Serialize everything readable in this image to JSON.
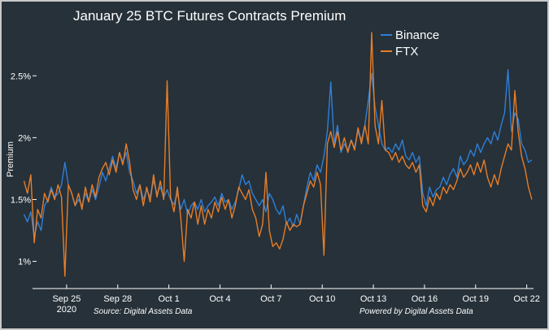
{
  "chart_data": {
    "type": "line",
    "title": "January 25 BTC Futures Contracts Premium",
    "ylabel": "Premium",
    "xlabel": "",
    "x_unit": "date (2020)",
    "xlim": [
      0,
      29.4
    ],
    "ylim": [
      0.8,
      2.85
    ],
    "x_ticks": [
      {
        "x": 2.0,
        "label": "Sep 25",
        "sublabel": "2020"
      },
      {
        "x": 5.0,
        "label": "Sep 28"
      },
      {
        "x": 8.0,
        "label": "Oct 1"
      },
      {
        "x": 11.0,
        "label": "Oct 4"
      },
      {
        "x": 14.0,
        "label": "Oct 7"
      },
      {
        "x": 17.0,
        "label": "Oct 10"
      },
      {
        "x": 20.0,
        "label": "Oct 13"
      },
      {
        "x": 23.0,
        "label": "Oct 16"
      },
      {
        "x": 26.0,
        "label": "Oct 19"
      },
      {
        "x": 29.0,
        "label": "Oct 22"
      }
    ],
    "y_ticks": [
      {
        "y": 1.0,
        "label": "1%"
      },
      {
        "y": 1.5,
        "label": "1.5%"
      },
      {
        "y": 2.0,
        "label": "2%"
      },
      {
        "y": 2.5,
        "label": "2.5%"
      }
    ],
    "legend_position": "top-right",
    "grid": false,
    "series": [
      {
        "name": "Binance",
        "color": "#2e7fd9",
        "points": [
          [
            -0.5,
            1.38
          ],
          [
            -0.3,
            1.32
          ],
          [
            -0.1,
            1.4
          ],
          [
            0.1,
            1.2
          ],
          [
            0.3,
            1.32
          ],
          [
            0.5,
            1.25
          ],
          [
            0.7,
            1.45
          ],
          [
            0.9,
            1.5
          ],
          [
            1.1,
            1.6
          ],
          [
            1.3,
            1.52
          ],
          [
            1.5,
            1.55
          ],
          [
            1.7,
            1.62
          ],
          [
            1.9,
            1.8
          ],
          [
            2.1,
            1.62
          ],
          [
            2.3,
            1.55
          ],
          [
            2.5,
            1.45
          ],
          [
            2.7,
            1.5
          ],
          [
            2.9,
            1.45
          ],
          [
            3.1,
            1.55
          ],
          [
            3.3,
            1.48
          ],
          [
            3.5,
            1.58
          ],
          [
            3.7,
            1.5
          ],
          [
            3.9,
            1.6
          ],
          [
            4.1,
            1.72
          ],
          [
            4.3,
            1.65
          ],
          [
            4.5,
            1.75
          ],
          [
            4.7,
            1.85
          ],
          [
            4.9,
            1.75
          ],
          [
            5.1,
            1.88
          ],
          [
            5.3,
            1.8
          ],
          [
            5.5,
            1.88
          ],
          [
            5.7,
            1.72
          ],
          [
            5.9,
            1.65
          ],
          [
            6.1,
            1.55
          ],
          [
            6.3,
            1.62
          ],
          [
            6.5,
            1.5
          ],
          [
            6.7,
            1.58
          ],
          [
            6.9,
            1.52
          ],
          [
            7.1,
            1.65
          ],
          [
            7.3,
            1.55
          ],
          [
            7.5,
            1.6
          ],
          [
            7.7,
            1.52
          ],
          [
            7.9,
            1.58
          ],
          [
            8.1,
            1.5
          ],
          [
            8.3,
            1.46
          ],
          [
            8.5,
            1.55
          ],
          [
            8.7,
            1.42
          ],
          [
            8.9,
            1.5
          ],
          [
            9.1,
            1.38
          ],
          [
            9.3,
            1.45
          ],
          [
            9.5,
            1.48
          ],
          [
            9.7,
            1.42
          ],
          [
            9.9,
            1.5
          ],
          [
            10.1,
            1.4
          ],
          [
            10.3,
            1.45
          ],
          [
            10.5,
            1.48
          ],
          [
            10.7,
            1.52
          ],
          [
            10.9,
            1.45
          ],
          [
            11.1,
            1.55
          ],
          [
            11.3,
            1.48
          ],
          [
            11.5,
            1.5
          ],
          [
            11.7,
            1.42
          ],
          [
            11.9,
            1.48
          ],
          [
            12.1,
            1.58
          ],
          [
            12.3,
            1.7
          ],
          [
            12.5,
            1.62
          ],
          [
            12.7,
            1.65
          ],
          [
            12.9,
            1.55
          ],
          [
            13.1,
            1.5
          ],
          [
            13.3,
            1.45
          ],
          [
            13.5,
            1.5
          ],
          [
            13.7,
            1.4
          ],
          [
            13.9,
            1.55
          ],
          [
            14.1,
            1.5
          ],
          [
            14.3,
            1.42
          ],
          [
            14.5,
            1.38
          ],
          [
            14.7,
            1.45
          ],
          [
            14.9,
            1.3
          ],
          [
            15.1,
            1.35
          ],
          [
            15.3,
            1.28
          ],
          [
            15.5,
            1.38
          ],
          [
            15.7,
            1.3
          ],
          [
            15.9,
            1.45
          ],
          [
            16.1,
            1.6
          ],
          [
            16.3,
            1.72
          ],
          [
            16.5,
            1.65
          ],
          [
            16.7,
            1.78
          ],
          [
            16.9,
            1.72
          ],
          [
            17.1,
            1.85
          ],
          [
            17.3,
            2.05
          ],
          [
            17.5,
            2.45
          ],
          [
            17.7,
            1.95
          ],
          [
            17.9,
            2.1
          ],
          [
            18.1,
            1.88
          ],
          [
            18.3,
            1.95
          ],
          [
            18.5,
            1.9
          ],
          [
            18.7,
            1.98
          ],
          [
            18.9,
            1.92
          ],
          [
            19.1,
            2.05
          ],
          [
            19.3,
            1.98
          ],
          [
            19.5,
            2.1
          ],
          [
            19.7,
            2.3
          ],
          [
            19.9,
            2.52
          ],
          [
            20.1,
            2.25
          ],
          [
            20.3,
            2.1
          ],
          [
            20.5,
            1.95
          ],
          [
            20.7,
            1.9
          ],
          [
            20.9,
            1.92
          ],
          [
            21.1,
            1.88
          ],
          [
            21.3,
            1.95
          ],
          [
            21.5,
            1.9
          ],
          [
            21.7,
            1.98
          ],
          [
            21.9,
            1.85
          ],
          [
            22.1,
            1.82
          ],
          [
            22.3,
            1.88
          ],
          [
            22.5,
            1.8
          ],
          [
            22.7,
            1.85
          ],
          [
            22.9,
            1.55
          ],
          [
            23.1,
            1.45
          ],
          [
            23.3,
            1.6
          ],
          [
            23.5,
            1.52
          ],
          [
            23.7,
            1.58
          ],
          [
            23.9,
            1.6
          ],
          [
            24.1,
            1.68
          ],
          [
            24.3,
            1.62
          ],
          [
            24.5,
            1.7
          ],
          [
            24.7,
            1.75
          ],
          [
            24.9,
            1.68
          ],
          [
            25.1,
            1.85
          ],
          [
            25.3,
            1.78
          ],
          [
            25.5,
            1.82
          ],
          [
            25.7,
            1.9
          ],
          [
            25.9,
            1.85
          ],
          [
            26.1,
            1.95
          ],
          [
            26.3,
            1.88
          ],
          [
            26.5,
            1.95
          ],
          [
            26.7,
            2.0
          ],
          [
            26.9,
            1.95
          ],
          [
            27.1,
            2.05
          ],
          [
            27.3,
            1.98
          ],
          [
            27.5,
            2.1
          ],
          [
            27.7,
            2.2
          ],
          [
            27.9,
            2.55
          ],
          [
            28.1,
            2.05
          ],
          [
            28.3,
            2.2
          ],
          [
            28.5,
            2.15
          ],
          [
            28.7,
            1.95
          ],
          [
            28.9,
            1.9
          ],
          [
            29.1,
            1.8
          ],
          [
            29.3,
            1.82
          ]
        ]
      },
      {
        "name": "FTX",
        "color": "#e87d27",
        "points": [
          [
            -0.5,
            1.65
          ],
          [
            -0.3,
            1.55
          ],
          [
            -0.1,
            1.7
          ],
          [
            0.1,
            1.15
          ],
          [
            0.3,
            1.42
          ],
          [
            0.5,
            1.35
          ],
          [
            0.7,
            1.55
          ],
          [
            0.9,
            1.48
          ],
          [
            1.1,
            1.58
          ],
          [
            1.3,
            1.5
          ],
          [
            1.5,
            1.62
          ],
          [
            1.7,
            1.52
          ],
          [
            1.9,
            0.88
          ],
          [
            2.1,
            1.62
          ],
          [
            2.3,
            1.55
          ],
          [
            2.5,
            1.45
          ],
          [
            2.7,
            1.55
          ],
          [
            2.9,
            1.42
          ],
          [
            3.1,
            1.6
          ],
          [
            3.3,
            1.48
          ],
          [
            3.5,
            1.62
          ],
          [
            3.7,
            1.52
          ],
          [
            3.9,
            1.68
          ],
          [
            4.1,
            1.75
          ],
          [
            4.3,
            1.8
          ],
          [
            4.5,
            1.7
          ],
          [
            4.7,
            1.82
          ],
          [
            4.9,
            1.72
          ],
          [
            5.1,
            1.88
          ],
          [
            5.3,
            1.78
          ],
          [
            5.5,
            1.95
          ],
          [
            5.7,
            1.8
          ],
          [
            5.9,
            1.58
          ],
          [
            6.1,
            1.5
          ],
          [
            6.3,
            1.62
          ],
          [
            6.5,
            1.45
          ],
          [
            6.7,
            1.6
          ],
          [
            6.9,
            1.48
          ],
          [
            7.1,
            1.7
          ],
          [
            7.3,
            1.52
          ],
          [
            7.5,
            1.65
          ],
          [
            7.7,
            1.5
          ],
          [
            7.9,
            2.46
          ],
          [
            8.1,
            1.52
          ],
          [
            8.3,
            1.4
          ],
          [
            8.5,
            1.6
          ],
          [
            8.7,
            1.35
          ],
          [
            8.9,
            1.0
          ],
          [
            9.1,
            1.42
          ],
          [
            9.3,
            1.35
          ],
          [
            9.5,
            1.48
          ],
          [
            9.7,
            1.3
          ],
          [
            9.9,
            1.45
          ],
          [
            10.1,
            1.3
          ],
          [
            10.3,
            1.42
          ],
          [
            10.5,
            1.35
          ],
          [
            10.7,
            1.48
          ],
          [
            10.9,
            1.4
          ],
          [
            11.1,
            1.52
          ],
          [
            11.3,
            1.42
          ],
          [
            11.5,
            1.5
          ],
          [
            11.7,
            1.35
          ],
          [
            11.9,
            1.45
          ],
          [
            12.1,
            1.6
          ],
          [
            12.3,
            1.55
          ],
          [
            12.5,
            1.5
          ],
          [
            12.7,
            1.58
          ],
          [
            12.9,
            1.42
          ],
          [
            13.1,
            1.35
          ],
          [
            13.3,
            1.2
          ],
          [
            13.5,
            1.3
          ],
          [
            13.7,
            1.72
          ],
          [
            13.9,
            1.25
          ],
          [
            14.1,
            1.12
          ],
          [
            14.3,
            1.15
          ],
          [
            14.5,
            1.1
          ],
          [
            14.7,
            1.18
          ],
          [
            14.9,
            1.32
          ],
          [
            15.1,
            1.25
          ],
          [
            15.3,
            1.3
          ],
          [
            15.5,
            1.28
          ],
          [
            15.7,
            1.3
          ],
          [
            15.9,
            1.45
          ],
          [
            16.1,
            1.55
          ],
          [
            16.3,
            1.65
          ],
          [
            16.5,
            1.6
          ],
          [
            16.7,
            1.72
          ],
          [
            16.9,
            1.62
          ],
          [
            17.1,
            1.05
          ],
          [
            17.3,
            1.95
          ],
          [
            17.5,
            2.05
          ],
          [
            17.7,
            1.92
          ],
          [
            17.9,
            2.05
          ],
          [
            18.1,
            1.9
          ],
          [
            18.3,
            2.0
          ],
          [
            18.5,
            1.88
          ],
          [
            18.7,
            1.98
          ],
          [
            18.9,
            1.9
          ],
          [
            19.1,
            2.08
          ],
          [
            19.3,
            1.95
          ],
          [
            19.5,
            2.1
          ],
          [
            19.7,
            1.95
          ],
          [
            19.9,
            2.85
          ],
          [
            20.1,
            2.1
          ],
          [
            20.3,
            1.95
          ],
          [
            20.5,
            2.3
          ],
          [
            20.7,
            1.9
          ],
          [
            20.9,
            1.88
          ],
          [
            21.1,
            1.82
          ],
          [
            21.3,
            1.88
          ],
          [
            21.5,
            1.8
          ],
          [
            21.7,
            1.85
          ],
          [
            21.9,
            1.78
          ],
          [
            22.1,
            1.75
          ],
          [
            22.3,
            1.8
          ],
          [
            22.5,
            1.72
          ],
          [
            22.7,
            1.78
          ],
          [
            22.9,
            1.45
          ],
          [
            23.1,
            1.4
          ],
          [
            23.3,
            1.52
          ],
          [
            23.5,
            1.45
          ],
          [
            23.7,
            1.55
          ],
          [
            23.9,
            1.5
          ],
          [
            24.1,
            1.6
          ],
          [
            24.3,
            1.55
          ],
          [
            24.5,
            1.62
          ],
          [
            24.7,
            1.58
          ],
          [
            24.9,
            1.65
          ],
          [
            25.1,
            1.75
          ],
          [
            25.3,
            1.68
          ],
          [
            25.5,
            1.72
          ],
          [
            25.7,
            1.78
          ],
          [
            25.9,
            1.7
          ],
          [
            26.1,
            1.8
          ],
          [
            26.3,
            1.72
          ],
          [
            26.5,
            1.82
          ],
          [
            26.7,
            1.68
          ],
          [
            26.9,
            1.6
          ],
          [
            27.1,
            1.7
          ],
          [
            27.3,
            1.62
          ],
          [
            27.5,
            1.75
          ],
          [
            27.7,
            1.85
          ],
          [
            27.9,
            1.95
          ],
          [
            28.1,
            1.9
          ],
          [
            28.3,
            2.38
          ],
          [
            28.5,
            2.05
          ],
          [
            28.7,
            1.85
          ],
          [
            28.9,
            1.75
          ],
          [
            29.1,
            1.6
          ],
          [
            29.3,
            1.5
          ]
        ]
      }
    ]
  },
  "footer": {
    "source": "Source: Digital Assets Data",
    "powered": "Powered by Digital Assets Data"
  }
}
